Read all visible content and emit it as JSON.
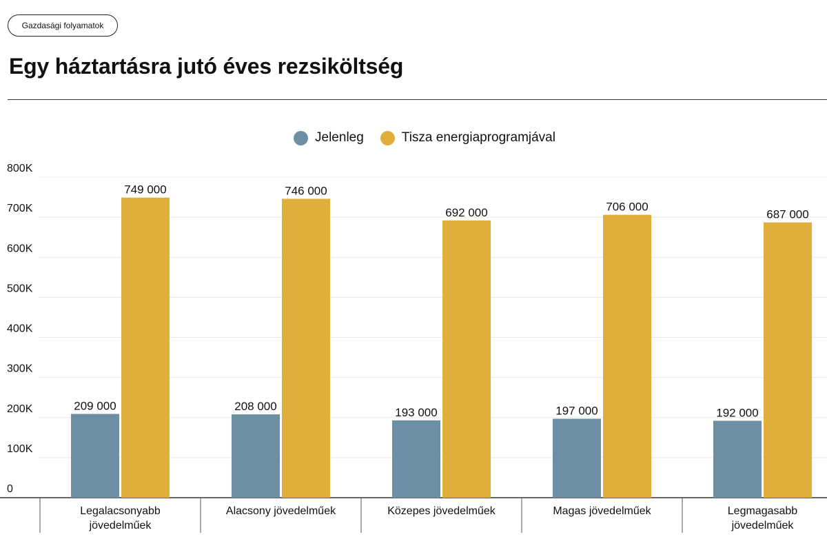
{
  "header": {
    "tag_label": "Gazdasági folyamatok",
    "title": "Egy háztartásra jutó éves rezsiköltség"
  },
  "colors": {
    "jelenleg": "#6d8fa3",
    "tisza": "#e0ae3a",
    "grid": "#e8e8e8",
    "axis": "#333333"
  },
  "chart_data": {
    "type": "bar",
    "title": "Egy háztartásra jutó éves rezsiköltség",
    "xlabel": "",
    "ylabel": "",
    "ylim": [
      0,
      800000
    ],
    "yticks": [
      0,
      100000,
      200000,
      300000,
      400000,
      500000,
      600000,
      700000,
      800000
    ],
    "ytick_labels": [
      "0",
      "100K",
      "200K",
      "300K",
      "400K",
      "500K",
      "600K",
      "700K",
      "800K"
    ],
    "grid": true,
    "legend_position": "top-center",
    "categories": [
      "Legalacsonyabb jövedelműek",
      "Alacsony jövedelműek",
      "Közepes jövedelműek",
      "Magas jövedelműek",
      "Legmagasabb jövedelműek"
    ],
    "series": [
      {
        "name": "Jelenleg",
        "values": [
          209000,
          208000,
          193000,
          197000,
          192000
        ],
        "labels": [
          "209 000",
          "208 000",
          "193 000",
          "197 000",
          "192 000"
        ]
      },
      {
        "name": "Tisza energiaprogramjával",
        "values": [
          749000,
          746000,
          692000,
          706000,
          687000
        ],
        "labels": [
          "749 000",
          "746 000",
          "692 000",
          "706 000",
          "687 000"
        ]
      }
    ]
  }
}
